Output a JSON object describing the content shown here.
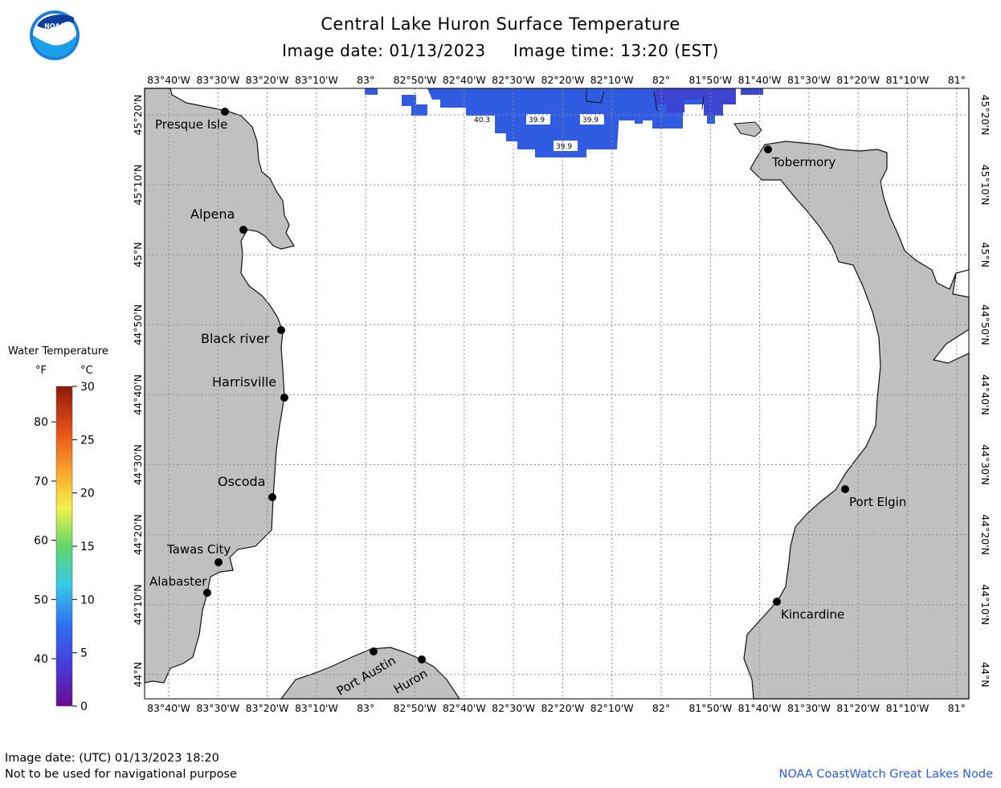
{
  "header": {
    "title": "Central Lake Huron Surface Temperature",
    "image_date_label": "Image date:",
    "image_date": "01/13/2023",
    "image_time_label": "Image time:",
    "image_time": "13:20 (EST)"
  },
  "legend": {
    "title": "Water Temperature",
    "unit_f": "°F",
    "unit_c": "°C",
    "f_ticks": [
      "40",
      "50",
      "60",
      "70",
      "80"
    ],
    "c_ticks": [
      "0",
      "5",
      "10",
      "15",
      "20",
      "25",
      "30"
    ]
  },
  "axes": {
    "lon_labels": [
      "83°40'W",
      "83°30'W",
      "83°20'W",
      "83°10'W",
      "83°",
      "82°50'W",
      "82°40'W",
      "82°30'W",
      "82°20'W",
      "82°10'W",
      "82°",
      "81°50'W",
      "81°40'W",
      "81°30'W",
      "81°20'W",
      "81°10'W",
      "81°"
    ],
    "lat_labels": [
      "45°20'N",
      "45°10'N",
      "45°N",
      "44°50'N",
      "44°40'N",
      "44°30'N",
      "44°20'N",
      "44°10'N",
      "44°N"
    ]
  },
  "places": {
    "presque_isle": "Presque Isle",
    "alpena": "Alpena",
    "black_river": "Black river",
    "harrisville": "Harrisville",
    "oscoda": "Oscoda",
    "tawas_city": "Tawas City",
    "alabaster": "Alabaster",
    "port_austin": "Port Austin",
    "huron": "Huron",
    "tobermory": "Tobermory",
    "port_elgin": "Port Elgin",
    "kincardine": "Kincardine"
  },
  "temps": {
    "t1": "40.3",
    "t2": "39.9",
    "t3": "39.9",
    "t4": "39.9"
  },
  "colors": {
    "land": "#c0c0c0",
    "water_temp": "#2f5ce0",
    "water_cold": "#3c45d2",
    "grid": "#8a8a8a"
  },
  "footer": {
    "utc_date": "Image date: (UTC) 01/13/2023  18:20",
    "disclaimer": "Not to be used for navigational purpose",
    "credit": "NOAA CoastWatch Great Lakes Node"
  },
  "logo_text": "NOAA"
}
